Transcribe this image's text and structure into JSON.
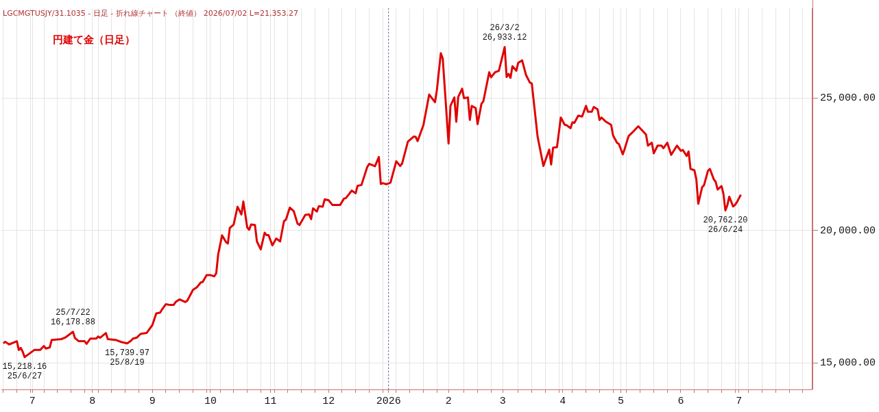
{
  "chart_data": {
    "type": "line",
    "title": "円建て金（日足）",
    "annotations": [
      "LGCMGTUSJY/31.1035 - 日足 - 折れ線チャート （終値） 2026/07/02 L=21,353.27",
      {
        "text": "15,218.16\n25/6/27",
        "x": "2025-06-27",
        "y": 15218.16
      },
      {
        "text": "25/7/22\n16,178.88",
        "x": "2025-07-22",
        "y": 16178.88
      },
      {
        "text": "15,739.97\n25/8/19",
        "x": "2025-08-19",
        "y": 15739.97
      },
      {
        "text": "26/3/2\n26,933.12",
        "x": "2026-03-02",
        "y": 26933.12
      },
      {
        "text": "20,762.20\n26/6/24",
        "x": "2026-06-24",
        "y": 20762.2
      }
    ],
    "x": [
      "2025-06-16",
      "2025-06-17",
      "2025-06-19",
      "2025-06-23",
      "2025-06-24",
      "2025-06-25",
      "2025-06-26",
      "2025-06-27",
      "2025-07-02",
      "2025-07-05",
      "2025-07-07",
      "2025-07-08",
      "2025-07-10",
      "2025-07-11",
      "2025-07-16",
      "2025-07-18",
      "2025-07-22",
      "2025-07-23",
      "2025-07-25",
      "2025-07-28",
      "2025-07-29",
      "2025-07-31",
      "2025-08-03",
      "2025-08-04",
      "2025-08-05",
      "2025-08-08",
      "2025-08-09",
      "2025-08-13",
      "2025-08-16",
      "2025-08-19",
      "2025-08-21",
      "2025-08-22",
      "2025-08-24",
      "2025-08-26",
      "2025-08-29",
      "2025-09-01",
      "2025-09-03",
      "2025-09-05",
      "2025-09-06",
      "2025-09-08",
      "2025-09-10",
      "2025-09-12",
      "2025-09-13",
      "2025-09-15",
      "2025-09-18",
      "2025-09-19",
      "2025-09-22",
      "2025-09-24",
      "2025-09-26",
      "2025-09-27",
      "2025-09-29",
      "2025-10-01",
      "2025-10-03",
      "2025-10-04",
      "2025-10-05",
      "2025-10-07",
      "2025-10-09",
      "2025-10-10",
      "2025-10-11",
      "2025-10-13",
      "2025-10-15",
      "2025-10-17",
      "2025-10-18",
      "2025-10-20",
      "2025-10-21",
      "2025-10-22",
      "2025-10-24",
      "2025-10-25",
      "2025-10-27",
      "2025-10-29",
      "2025-10-30",
      "2025-10-31",
      "2025-11-02",
      "2025-11-04",
      "2025-11-06",
      "2025-11-08",
      "2025-11-09",
      "2025-11-11",
      "2025-11-13",
      "2025-11-15",
      "2025-11-16",
      "2025-11-19",
      "2025-11-21",
      "2025-11-22",
      "2025-11-23",
      "2025-11-25",
      "2025-11-26",
      "2025-11-28",
      "2025-11-29",
      "2025-12-01",
      "2025-12-03",
      "2025-12-07",
      "2025-12-09",
      "2025-12-10",
      "2025-12-13",
      "2025-12-15",
      "2025-12-16",
      "2025-12-18",
      "2025-12-21",
      "2025-12-22",
      "2025-12-25",
      "2025-12-27",
      "2025-12-28",
      "2025-12-29",
      "2025-12-31",
      "2026-01-02",
      "2026-01-04",
      "2026-01-05",
      "2026-01-07",
      "2026-01-08",
      "2026-01-11",
      "2026-01-14",
      "2026-01-15",
      "2026-01-16",
      "2026-01-19",
      "2026-01-22",
      "2026-01-25",
      "2026-01-26",
      "2026-01-28",
      "2026-01-29",
      "2026-02-01",
      "2026-02-02",
      "2026-02-04",
      "2026-02-05",
      "2026-02-06",
      "2026-02-08",
      "2026-02-09",
      "2026-02-11",
      "2026-02-12",
      "2026-02-13",
      "2026-02-15",
      "2026-02-16",
      "2026-02-18",
      "2026-02-19",
      "2026-02-22",
      "2026-02-23",
      "2026-02-25",
      "2026-02-27",
      "2026-03-02",
      "2026-03-03",
      "2026-03-04",
      "2026-03-05",
      "2026-03-06",
      "2026-03-08",
      "2026-03-09",
      "2026-03-11",
      "2026-03-13",
      "2026-03-15",
      "2026-03-16",
      "2026-03-19",
      "2026-03-22",
      "2026-03-25",
      "2026-03-26",
      "2026-03-27",
      "2026-03-29",
      "2026-03-31",
      "2026-04-02",
      "2026-04-03",
      "2026-04-05",
      "2026-04-06",
      "2026-04-07",
      "2026-04-09",
      "2026-04-11",
      "2026-04-13",
      "2026-04-14",
      "2026-04-16",
      "2026-04-17",
      "2026-04-19",
      "2026-04-20",
      "2026-04-21",
      "2026-04-23",
      "2026-04-26",
      "2026-04-27",
      "2026-04-29",
      "2026-04-30",
      "2026-05-02",
      "2026-05-03",
      "2026-05-05",
      "2026-05-07",
      "2026-05-10",
      "2026-05-13",
      "2026-05-14",
      "2026-05-15",
      "2026-05-17",
      "2026-05-18",
      "2026-05-20",
      "2026-05-22",
      "2026-05-23",
      "2026-05-25",
      "2026-05-27",
      "2026-05-30",
      "2026-06-01",
      "2026-06-02",
      "2026-06-04",
      "2026-06-05",
      "2026-06-06",
      "2026-06-08",
      "2026-06-09",
      "2026-06-10",
      "2026-06-12",
      "2026-06-13",
      "2026-06-15",
      "2026-06-16",
      "2026-06-18",
      "2026-06-19",
      "2026-06-20",
      "2026-06-22",
      "2026-06-23",
      "2026-06-24",
      "2026-06-25",
      "2026-06-26",
      "2026-06-28",
      "2026-06-29",
      "2026-06-30",
      "2026-07-02"
    ],
    "series": [
      {
        "color": "#e00000",
        "values": [
          15740,
          15800,
          15700,
          15820,
          15490,
          15570,
          15430,
          15218.16,
          15490,
          15490,
          15640,
          15540,
          15590,
          15870,
          15900,
          15960,
          16178.88,
          15940,
          15820,
          15820,
          15720,
          15920,
          15920,
          16000,
          15950,
          16130,
          15900,
          15870,
          15790,
          15739.97,
          15840,
          15920,
          15960,
          16100,
          16130,
          16430,
          16870,
          16900,
          17020,
          17220,
          17190,
          17190,
          17300,
          17400,
          17300,
          17350,
          17760,
          17860,
          18040,
          18060,
          18320,
          18320,
          18270,
          18390,
          19100,
          19820,
          19570,
          19510,
          20100,
          20230,
          20900,
          20610,
          21100,
          20120,
          20030,
          20230,
          20210,
          19590,
          19290,
          19920,
          19830,
          19830,
          19440,
          19700,
          19590,
          20360,
          20410,
          20870,
          20740,
          20260,
          20210,
          20590,
          20610,
          20430,
          20840,
          20720,
          20920,
          20900,
          21180,
          21150,
          20970,
          20970,
          21210,
          21230,
          21510,
          21410,
          21690,
          21720,
          22400,
          22520,
          22430,
          22780,
          21760,
          21790,
          21750,
          21810,
          22350,
          22620,
          22440,
          22530,
          23360,
          23550,
          23540,
          23380,
          23980,
          25140,
          24850,
          25320,
          26700,
          26500,
          23290,
          24710,
          25030,
          24110,
          25050,
          25360,
          25000,
          25030,
          24180,
          24710,
          24630,
          24020,
          24790,
          24890,
          25980,
          25790,
          25980,
          26040,
          26933.12,
          25800,
          25920,
          25770,
          26210,
          26040,
          26340,
          26430,
          25880,
          25590,
          25560,
          23550,
          22440,
          23060,
          22500,
          23130,
          23150,
          24270,
          24000,
          23980,
          23870,
          24090,
          24070,
          24340,
          24310,
          24710,
          24490,
          24490,
          24670,
          24580,
          24180,
          24270,
          24130,
          23990,
          23590,
          23320,
          23270,
          22880,
          23090,
          23570,
          23710,
          23940,
          23710,
          23630,
          23210,
          23320,
          22920,
          23210,
          23210,
          23110,
          23320,
          22860,
          23210,
          23010,
          23050,
          22820,
          22990,
          22330,
          22280,
          21940,
          21010,
          21640,
          21720,
          22260,
          22330,
          21940,
          21840,
          21550,
          21680,
          21390,
          20762.2,
          20950,
          21280,
          20910,
          20970,
          21080,
          21353.27
        ]
      }
    ],
    "xlim": [
      "2025-06-15",
      "2026-08-08"
    ],
    "xticks": [
      {
        "value": "2025-06-16",
        "label": null
      },
      {
        "value": "2025-06-23",
        "label": null
      },
      {
        "value": "2025-06-30",
        "label": null
      },
      {
        "value": "2025-07-01",
        "label": "7"
      },
      {
        "value": "2025-07-07",
        "label": null
      },
      {
        "value": "2025-07-14",
        "label": null
      },
      {
        "value": "2025-07-21",
        "label": null
      },
      {
        "value": "2025-07-28",
        "label": null
      },
      {
        "value": "2025-08-01",
        "label": "8"
      },
      {
        "value": "2025-08-04",
        "label": null
      },
      {
        "value": "2025-08-11",
        "label": null
      },
      {
        "value": "2025-08-18",
        "label": null
      },
      {
        "value": "2025-08-25",
        "label": null
      },
      {
        "value": "2025-09-01",
        "label": "9"
      },
      {
        "value": "2025-09-08",
        "label": null
      },
      {
        "value": "2025-09-15",
        "label": null
      },
      {
        "value": "2025-09-22",
        "label": null
      },
      {
        "value": "2025-09-29",
        "label": null
      },
      {
        "value": "2025-10-01",
        "label": "10"
      },
      {
        "value": "2025-10-06",
        "label": null
      },
      {
        "value": "2025-10-13",
        "label": null
      },
      {
        "value": "2025-10-20",
        "label": null
      },
      {
        "value": "2025-10-27",
        "label": null
      },
      {
        "value": "2025-11-01",
        "label": "11"
      },
      {
        "value": "2025-11-03",
        "label": null
      },
      {
        "value": "2025-11-10",
        "label": null
      },
      {
        "value": "2025-11-17",
        "label": null
      },
      {
        "value": "2025-11-24",
        "label": null
      },
      {
        "value": "2025-12-01",
        "label": "12"
      },
      {
        "value": "2025-12-08",
        "label": null
      },
      {
        "value": "2025-12-15",
        "label": null
      },
      {
        "value": "2025-12-22",
        "label": null
      },
      {
        "value": "2025-12-29",
        "label": null
      },
      {
        "value": "2026-01-01",
        "label": "2026"
      },
      {
        "value": "2026-01-05",
        "label": null
      },
      {
        "value": "2026-01-12",
        "label": null
      },
      {
        "value": "2026-01-19",
        "label": null
      },
      {
        "value": "2026-01-26",
        "label": null
      },
      {
        "value": "2026-02-01",
        "label": "2"
      },
      {
        "value": "2026-02-09",
        "label": null
      },
      {
        "value": "2026-02-16",
        "label": null
      },
      {
        "value": "2026-02-23",
        "label": null
      },
      {
        "value": "2026-03-01",
        "label": "3"
      },
      {
        "value": "2026-03-09",
        "label": null
      },
      {
        "value": "2026-03-16",
        "label": null
      },
      {
        "value": "2026-03-23",
        "label": null
      },
      {
        "value": "2026-03-30",
        "label": null
      },
      {
        "value": "2026-04-01",
        "label": "4"
      },
      {
        "value": "2026-04-06",
        "label": null
      },
      {
        "value": "2026-04-13",
        "label": null
      },
      {
        "value": "2026-04-20",
        "label": null
      },
      {
        "value": "2026-04-27",
        "label": null
      },
      {
        "value": "2026-05-01",
        "label": "5"
      },
      {
        "value": "2026-05-04",
        "label": null
      },
      {
        "value": "2026-05-11",
        "label": null
      },
      {
        "value": "2026-05-18",
        "label": null
      },
      {
        "value": "2026-05-25",
        "label": null
      },
      {
        "value": "2026-06-01",
        "label": "6"
      },
      {
        "value": "2026-06-08",
        "label": null
      },
      {
        "value": "2026-06-15",
        "label": null
      },
      {
        "value": "2026-06-22",
        "label": null
      },
      {
        "value": "2026-06-29",
        "label": null
      },
      {
        "value": "2026-07-01",
        "label": "7"
      },
      {
        "value": "2026-07-06",
        "label": null
      },
      {
        "value": "2026-07-13",
        "label": null
      },
      {
        "value": "2026-07-20",
        "label": null
      },
      {
        "value": "2026-07-27",
        "label": null
      },
      {
        "value": "2026-08-03",
        "label": null
      }
    ],
    "ylim": [
      14000,
      28400
    ],
    "yticks": [
      {
        "value": 15000,
        "label": "15,000.00"
      },
      {
        "value": 20000,
        "label": "20,000.00"
      },
      {
        "value": 25000,
        "label": "25,000.00"
      }
    ],
    "ref_lines": [
      {
        "axis": "x",
        "value": "2026-01-01",
        "color": "#5555aa",
        "line_style": "dotted"
      }
    ],
    "grid": true,
    "legend": false,
    "marker": "none"
  }
}
